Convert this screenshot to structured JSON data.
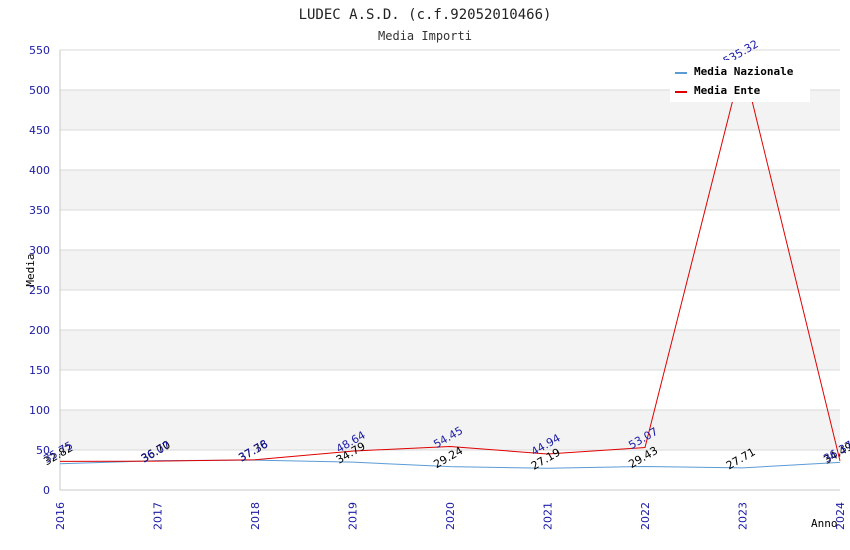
{
  "chart_data": {
    "type": "line",
    "title": "LUDEC A.S.D. (c.f.92052010466)",
    "subtitle": "Media Importi",
    "xlabel": "Anno",
    "ylabel": "Media",
    "categories": [
      "2016",
      "2017",
      "2018",
      "2019",
      "2020",
      "2021",
      "2022",
      "2023",
      "2024"
    ],
    "y_ticks": [
      "0",
      "50",
      "100",
      "150",
      "200",
      "250",
      "300",
      "350",
      "400",
      "450",
      "500",
      "550"
    ],
    "ylim": [
      0,
      550
    ],
    "grid": "horizontal alternating bands",
    "legend_position": "top-right",
    "series": [
      {
        "name": "Media Nazionale",
        "color": "#5b9bd5",
        "label_color": "#000000",
        "values": [
          32.82,
          36.7,
          37.36,
          34.79,
          29.24,
          27.19,
          29.43,
          27.71,
          34.49
        ],
        "labels": [
          "32.82",
          "36.70",
          "37.36",
          "34.79",
          "29.24",
          "27.19",
          "29.43",
          "27.71",
          "34.49"
        ]
      },
      {
        "name": "Media Ente",
        "color": "#e00000",
        "label_color": "#1a1aa6",
        "values": [
          35.75,
          36.07,
          37.78,
          48.64,
          54.45,
          44.94,
          53.07,
          535.32,
          36.37
        ],
        "labels": [
          "35.75",
          "36.07",
          "37.78",
          "48.64",
          "54.45",
          "44.94",
          "53.07",
          "535.32",
          "36.37"
        ]
      }
    ]
  }
}
